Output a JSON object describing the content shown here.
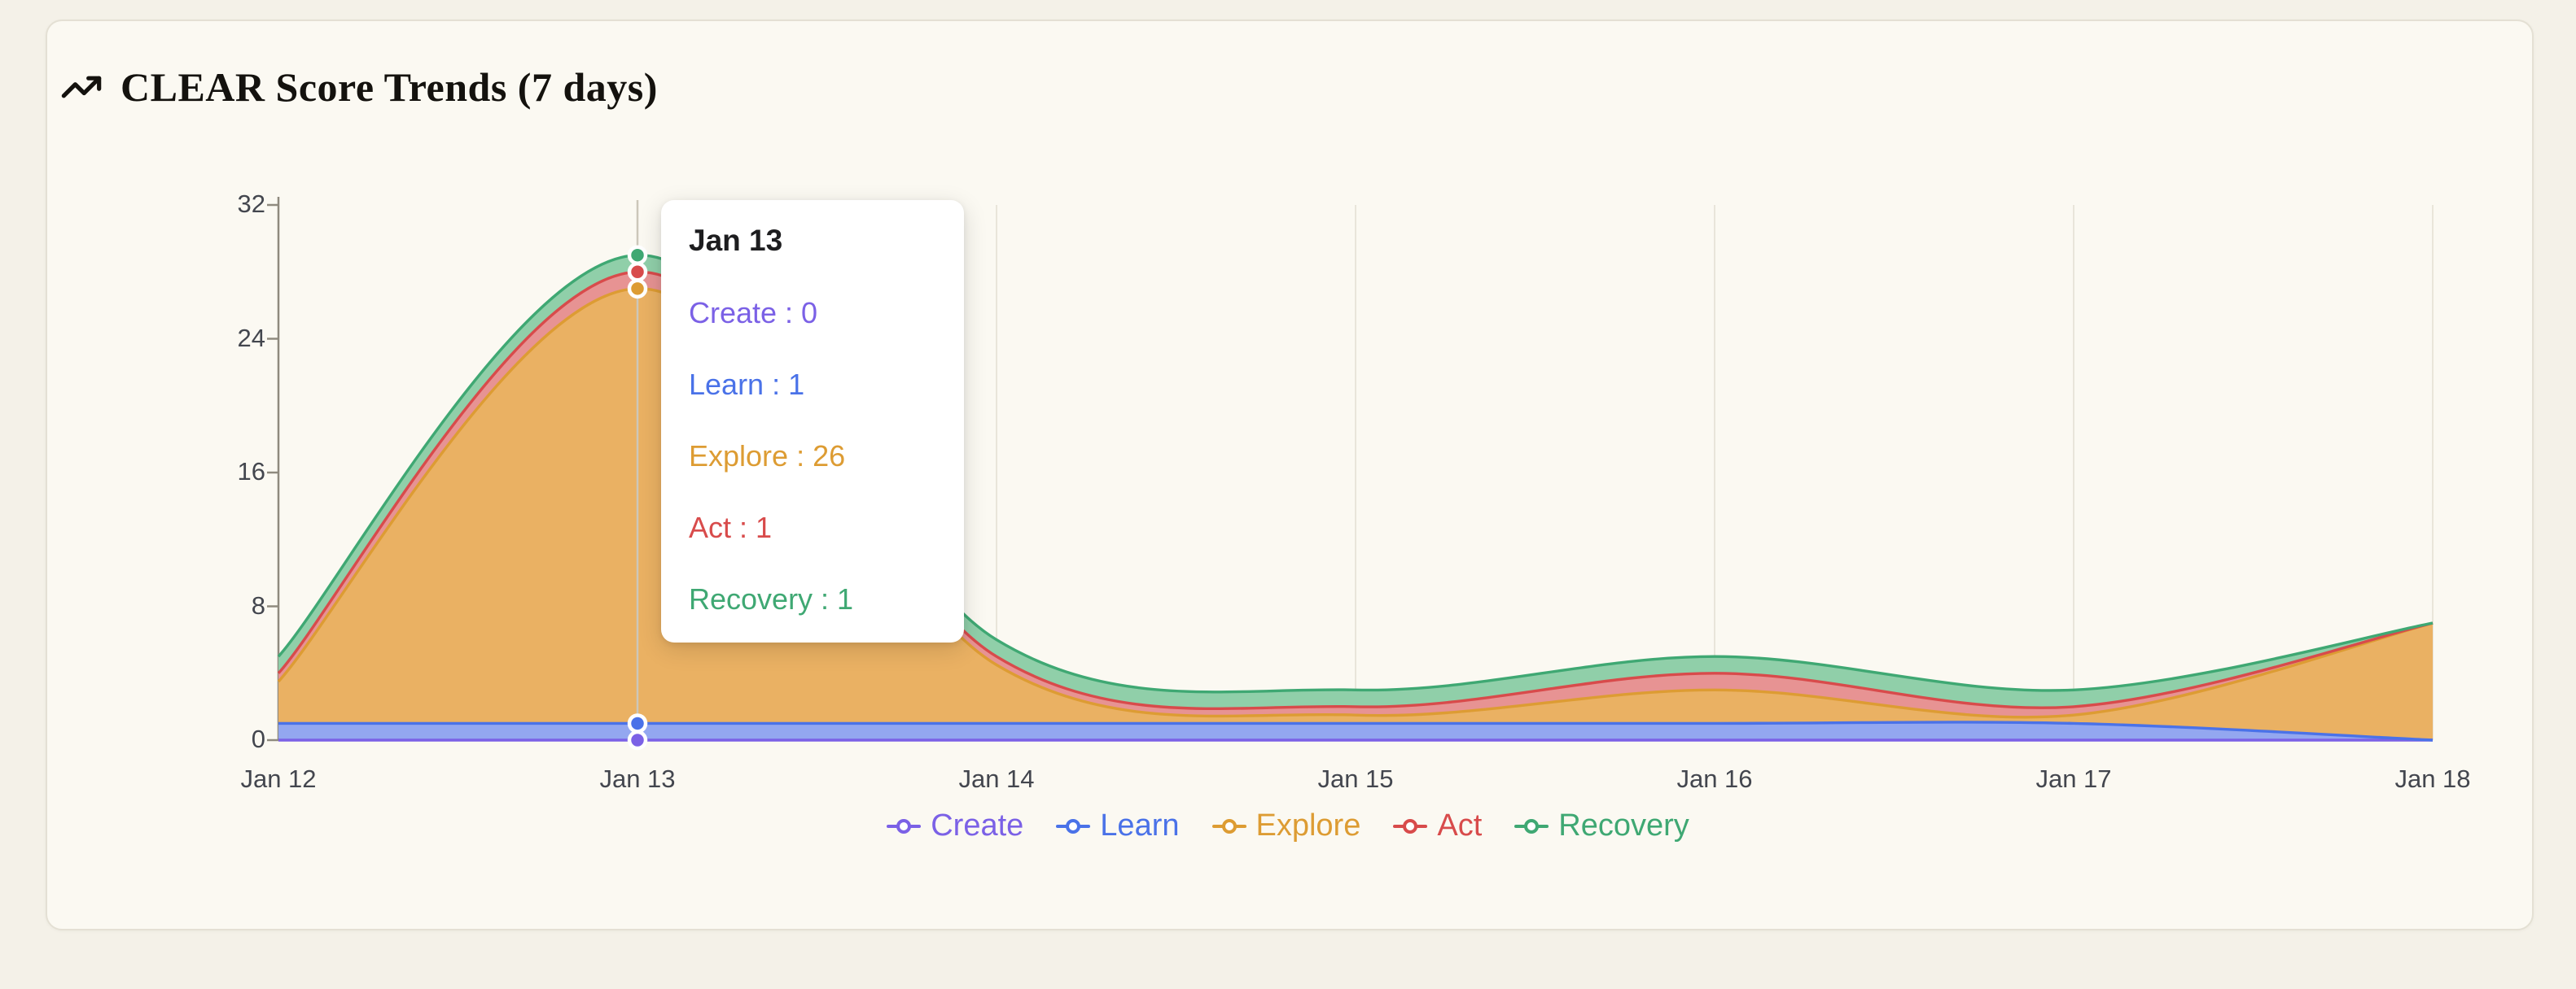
{
  "page": {
    "background": "#f4f1e8",
    "card_background": "#fbf9f2",
    "card_border": "#e4e0d4"
  },
  "header": {
    "title": "CLEAR Score Trends (7 days)",
    "icon": "trending-up-icon"
  },
  "chart_data": {
    "type": "area",
    "stacked": true,
    "smooth": true,
    "grid": "faint-vertical",
    "legend_position": "bottom",
    "x": [
      "Jan 12",
      "Jan 13",
      "Jan 14",
      "Jan 15",
      "Jan 16",
      "Jan 17",
      "Jan 18"
    ],
    "y_ticks": [
      0,
      8,
      16,
      24,
      32
    ],
    "ylim": [
      0,
      32
    ],
    "series": [
      {
        "name": "Create",
        "color": "#7b61e6",
        "fill": "#9f8df2",
        "values": [
          0,
          0,
          0,
          0,
          0,
          0,
          0
        ]
      },
      {
        "name": "Learn",
        "color": "#4a72e8",
        "fill": "#93a7f0",
        "values": [
          1,
          1,
          1,
          1,
          1,
          1,
          0
        ]
      },
      {
        "name": "Explore",
        "color": "#dd9c33",
        "fill": "#eab163",
        "values": [
          2.5,
          26,
          3.5,
          0.5,
          2,
          0.5,
          7
        ]
      },
      {
        "name": "Act",
        "color": "#d84b4b",
        "fill": "#e79393",
        "values": [
          0.5,
          1,
          0.5,
          0.5,
          1,
          0.5,
          0
        ]
      },
      {
        "name": "Recovery",
        "color": "#3fa873",
        "fill": "#90cfa9",
        "values": [
          1,
          1,
          1,
          1,
          1,
          1,
          0
        ]
      }
    ]
  },
  "tooltip": {
    "title": "Jan 13",
    "x_index": 1,
    "separator": " : ",
    "rows": [
      {
        "label": "Create",
        "value": 0
      },
      {
        "label": "Learn",
        "value": 1
      },
      {
        "label": "Explore",
        "value": 26
      },
      {
        "label": "Act",
        "value": 1
      },
      {
        "label": "Recovery",
        "value": 1
      }
    ]
  }
}
